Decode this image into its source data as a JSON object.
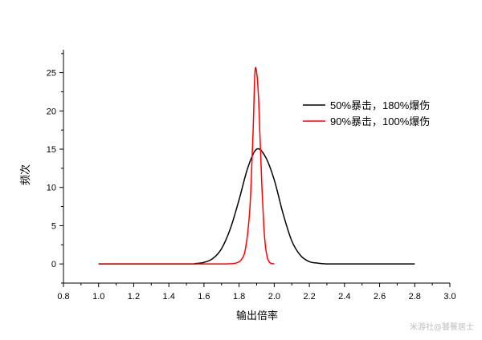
{
  "chart_data": {
    "type": "line",
    "xlabel": "输出倍率",
    "ylabel": "频次",
    "xlim": [
      0.8,
      3.0
    ],
    "ylim": [
      -2.5,
      28
    ],
    "x_ticks": [
      "0.8",
      "1.0",
      "1.2",
      "1.4",
      "1.6",
      "1.8",
      "2.0",
      "2.2",
      "2.4",
      "2.6",
      "2.8",
      "3.0"
    ],
    "y_ticks": [
      "0",
      "5",
      "10",
      "15",
      "20",
      "25"
    ],
    "grid": false,
    "legend_position": "top-right",
    "series": [
      {
        "name": "50%暴击，180%爆伤",
        "color": "#000000",
        "x": [
          1.0,
          1.5,
          1.55,
          1.6,
          1.65,
          1.7,
          1.75,
          1.8,
          1.85,
          1.9,
          1.95,
          2.0,
          2.05,
          2.1,
          2.15,
          2.2,
          2.25,
          2.3,
          2.4,
          2.6,
          2.8
        ],
        "y": [
          0,
          0,
          0.05,
          0.2,
          0.7,
          2.0,
          4.6,
          8.4,
          12.6,
          15.0,
          14.0,
          11.0,
          6.6,
          3.0,
          1.1,
          0.3,
          0.1,
          0,
          0,
          0,
          0
        ]
      },
      {
        "name": "90%暴击，100%爆伤",
        "color": "#ff0000",
        "x": [
          1.0,
          1.5,
          1.7,
          1.78,
          1.82,
          1.84,
          1.86,
          1.87,
          1.88,
          1.89,
          1.9,
          1.91,
          1.92,
          1.93,
          1.94,
          1.95,
          1.96,
          1.97,
          1.98,
          2.0
        ],
        "y": [
          0,
          0,
          0,
          0.1,
          0.8,
          2.5,
          6.8,
          11.5,
          17.5,
          25.0,
          25.0,
          22.0,
          16.0,
          10.0,
          5.2,
          2.3,
          0.9,
          0.3,
          0.1,
          0
        ]
      }
    ]
  },
  "watermark": "米游社@饕餮居士"
}
